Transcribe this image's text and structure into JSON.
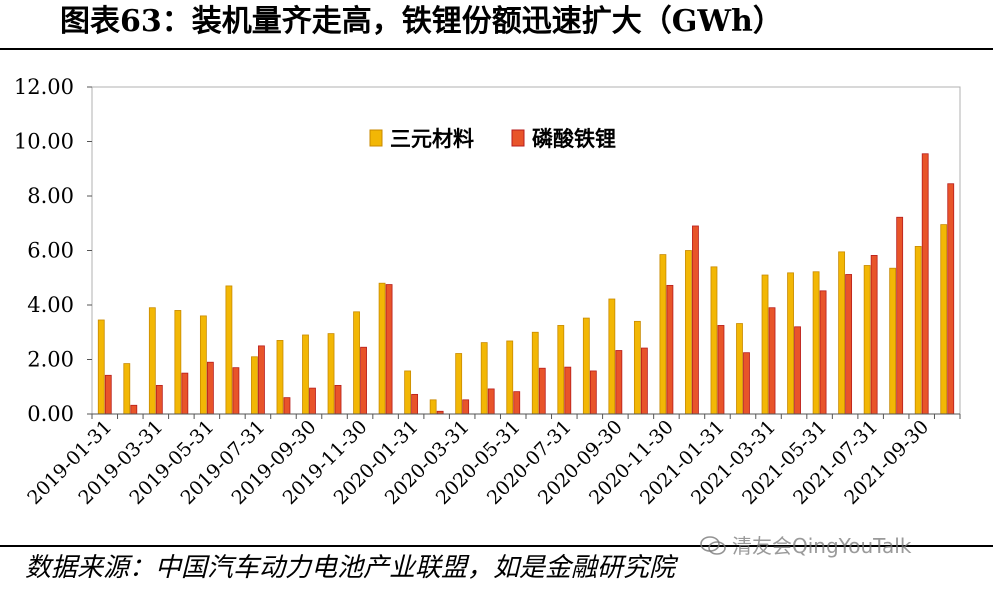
{
  "header": {
    "title": "图表63：装机量齐走高，铁锂份额迅速扩大（GWh）"
  },
  "footer": {
    "source": "数据来源：中国汽车动力电池产业联盟，如是金融研究院"
  },
  "watermark": {
    "text": "清友会QingYouTalk",
    "icon": "wechat-icon"
  },
  "chart_data": {
    "type": "bar",
    "title": "图表63：装机量齐走高，铁锂份额迅速扩大（GWh）",
    "xlabel": "",
    "ylabel": "",
    "ylim": [
      0,
      12
    ],
    "yticks": [
      "0.00",
      "2.00",
      "4.00",
      "6.00",
      "8.00",
      "10.00",
      "12.00"
    ],
    "grid": false,
    "legend_position": "top-center",
    "categories": [
      "2019-01-31",
      "2019-02-28",
      "2019-03-31",
      "2019-04-30",
      "2019-05-31",
      "2019-06-30",
      "2019-07-31",
      "2019-08-31",
      "2019-09-30",
      "2019-10-31",
      "2019-11-30",
      "2019-12-31",
      "2020-01-31",
      "2020-02-29",
      "2020-03-31",
      "2020-04-30",
      "2020-05-31",
      "2020-06-30",
      "2020-07-31",
      "2020-08-31",
      "2020-09-30",
      "2020-10-31",
      "2020-11-30",
      "2020-12-31",
      "2021-01-31",
      "2021-02-28",
      "2021-03-31",
      "2021-04-30",
      "2021-05-31",
      "2021-06-30",
      "2021-07-31",
      "2021-08-31",
      "2021-09-30",
      "2021-10-31"
    ],
    "tick_labels": [
      "2019-01-31",
      "2019-03-31",
      "2019-05-31",
      "2019-07-31",
      "2019-09-30",
      "2019-11-30",
      "2020-01-31",
      "2020-03-31",
      "2020-05-31",
      "2020-07-31",
      "2020-09-30",
      "2020-11-30",
      "2021-01-31",
      "2021-03-31",
      "2021-05-31",
      "2021-07-31",
      "2021-09-30"
    ],
    "series": [
      {
        "name": "三元材料",
        "color": "#F2B705",
        "stroke": "#C88A00",
        "values": [
          3.45,
          1.85,
          3.9,
          3.8,
          3.6,
          4.7,
          2.1,
          2.7,
          2.9,
          2.95,
          3.75,
          4.8,
          1.58,
          0.52,
          2.22,
          2.62,
          2.68,
          3.0,
          3.25,
          3.52,
          4.22,
          3.4,
          5.85,
          6.0,
          5.4,
          3.32,
          5.1,
          5.18,
          5.22,
          5.95,
          5.45,
          5.35,
          6.15,
          6.95
        ]
      },
      {
        "name": "磷酸铁锂",
        "color": "#E8542A",
        "stroke": "#B71C1C",
        "values": [
          1.42,
          0.32,
          1.05,
          1.5,
          1.9,
          1.7,
          2.5,
          0.6,
          0.95,
          1.05,
          2.45,
          4.75,
          0.72,
          0.1,
          0.52,
          0.92,
          0.82,
          1.68,
          1.72,
          1.58,
          2.33,
          2.42,
          4.72,
          6.9,
          3.25,
          2.25,
          3.9,
          3.2,
          4.52,
          5.12,
          5.82,
          7.22,
          9.55,
          8.45
        ]
      }
    ]
  }
}
